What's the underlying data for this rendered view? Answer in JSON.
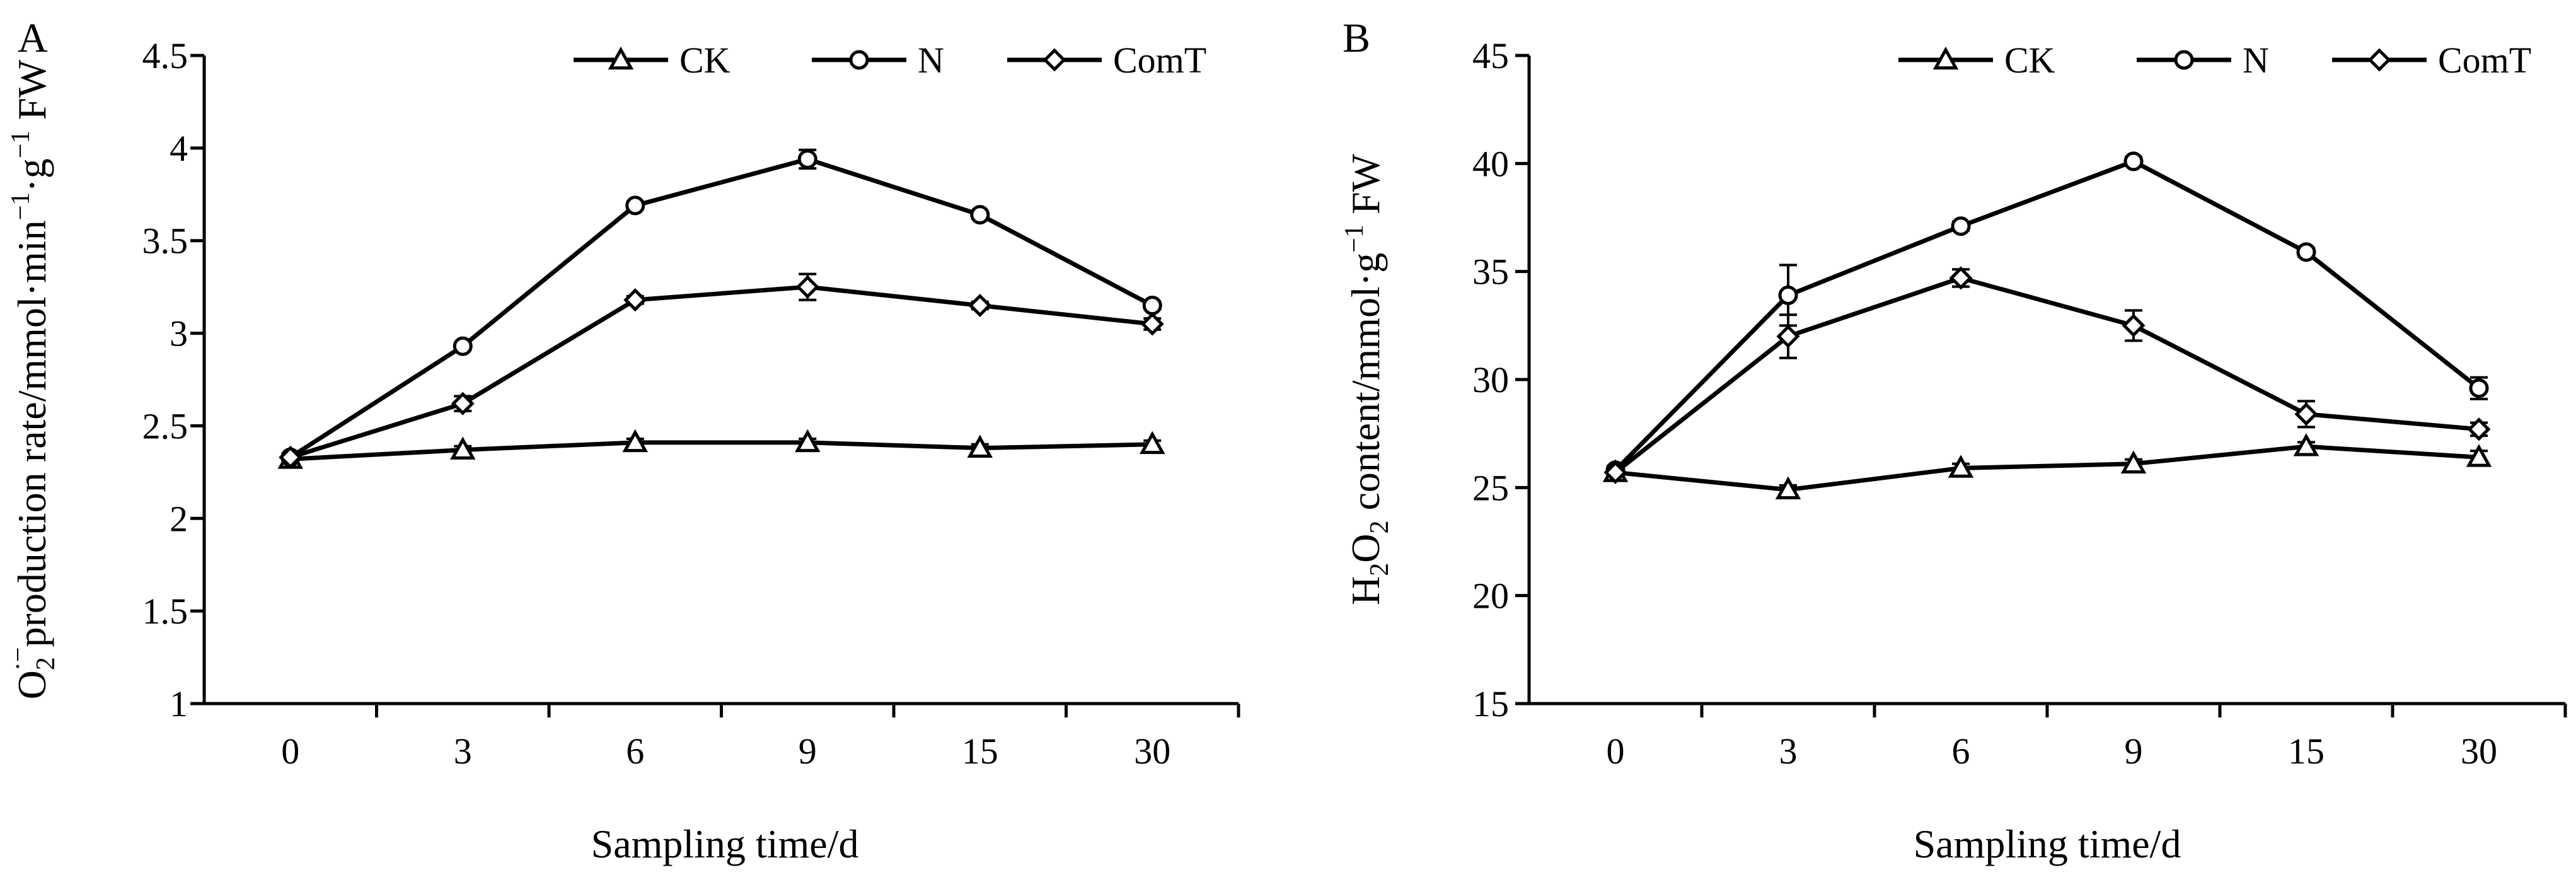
{
  "figure": {
    "style": {
      "line_color": "#000000",
      "background": "#ffffff"
    }
  },
  "chart_data": [
    {
      "panel_label": "A",
      "type": "line",
      "categories": [
        "0",
        "3",
        "6",
        "9",
        "15",
        "30"
      ],
      "xlabel": "Sampling time/d",
      "ylabel": {
        "pre": "O",
        "sub": "2",
        "sup": "·−",
        "mid": "production rate/mmol·min",
        "sup2": "−1",
        "mid2": "·g",
        "sup3": "−1",
        "post": " FW"
      },
      "ylim": [
        1,
        4.5
      ],
      "yticks": [
        1,
        1.5,
        2,
        2.5,
        3,
        3.5,
        4,
        4.5
      ],
      "ytick_labels": [
        "1",
        "1.5",
        "2",
        "2.5",
        "3",
        "3.5",
        "4",
        "4.5"
      ],
      "legend_position": "top",
      "series": [
        {
          "name": "CK",
          "marker": "triangle",
          "values": [
            2.32,
            2.37,
            2.41,
            2.41,
            2.38,
            2.4
          ],
          "errors": [
            0.02,
            0.02,
            0.02,
            0.02,
            0.02,
            0.02
          ]
        },
        {
          "name": "N",
          "marker": "circle",
          "values": [
            2.33,
            2.93,
            3.69,
            3.94,
            3.64,
            3.15
          ],
          "errors": [
            0.02,
            0.02,
            0.02,
            0.05,
            0.02,
            0.02
          ]
        },
        {
          "name": "ComT",
          "marker": "diamond",
          "values": [
            2.33,
            2.62,
            3.18,
            3.25,
            3.15,
            3.05
          ],
          "errors": [
            0.02,
            0.04,
            0.02,
            0.07,
            0.02,
            0.03
          ]
        }
      ]
    },
    {
      "panel_label": "B",
      "type": "line",
      "categories": [
        "0",
        "3",
        "6",
        "9",
        "15",
        "30"
      ],
      "xlabel": "Sampling time/d",
      "ylabel": {
        "pre": "H",
        "sub": "2",
        "mid": "O",
        "sub2": "2",
        "post": " content/mmol·g",
        "sup": "−1",
        "post2": " FW"
      },
      "ylim": [
        15,
        45
      ],
      "yticks": [
        15,
        20,
        25,
        30,
        35,
        40,
        45
      ],
      "ytick_labels": [
        "15",
        "20",
        "25",
        "30",
        "35",
        "40",
        "45"
      ],
      "legend_position": "top",
      "series": [
        {
          "name": "CK",
          "marker": "triangle",
          "values": [
            25.7,
            24.9,
            25.9,
            26.1,
            26.9,
            26.4
          ],
          "errors": [
            0.2,
            0.2,
            0.2,
            0.2,
            0.2,
            0.3
          ]
        },
        {
          "name": "N",
          "marker": "circle",
          "values": [
            25.8,
            33.9,
            37.1,
            40.1,
            35.9,
            29.6
          ],
          "errors": [
            0.2,
            1.4,
            0.2,
            0.2,
            0.2,
            0.5
          ]
        },
        {
          "name": "ComT",
          "marker": "diamond",
          "values": [
            25.7,
            32.0,
            34.7,
            32.5,
            28.4,
            27.7
          ],
          "errors": [
            0.2,
            1.0,
            0.4,
            0.7,
            0.6,
            0.3
          ]
        }
      ]
    }
  ]
}
